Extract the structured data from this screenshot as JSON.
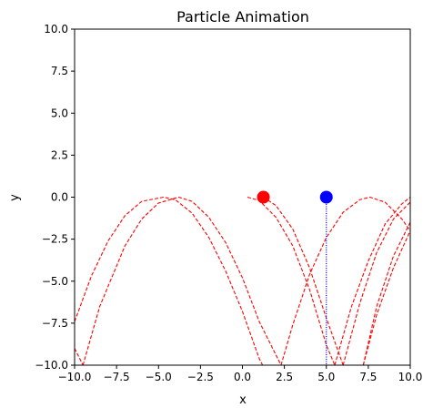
{
  "chart_data": {
    "type": "line",
    "title": "Particle Animation",
    "xlabel": "x",
    "ylabel": "y",
    "xlim": [
      -10,
      10
    ],
    "ylim": [
      -10,
      10
    ],
    "grid": false,
    "x_ticks": [
      {
        "value": -10,
        "label": "−10.0"
      },
      {
        "value": -7.5,
        "label": "−7.5"
      },
      {
        "value": -5,
        "label": "−5.0"
      },
      {
        "value": -2.5,
        "label": "−2.5"
      },
      {
        "value": 0,
        "label": "0.0"
      },
      {
        "value": 2.5,
        "label": "2.5"
      },
      {
        "value": 5,
        "label": "5.0"
      },
      {
        "value": 7.5,
        "label": "7.5"
      },
      {
        "value": 10,
        "label": "10.0"
      }
    ],
    "y_ticks": [
      {
        "value": -10,
        "label": "−10.0"
      },
      {
        "value": -7.5,
        "label": "−7.5"
      },
      {
        "value": -5,
        "label": "−5.0"
      },
      {
        "value": -2.5,
        "label": "−2.5"
      },
      {
        "value": 0,
        "label": "0.0"
      },
      {
        "value": 2.5,
        "label": "2.5"
      },
      {
        "value": 5,
        "label": "5.0"
      },
      {
        "value": 7.5,
        "label": "7.5"
      },
      {
        "value": 10,
        "label": "10.0"
      }
    ],
    "series": [
      {
        "style": "dashed",
        "color": "#ff0000",
        "points": [
          [
            0.3,
            0.0
          ],
          [
            1.0,
            -0.2
          ],
          [
            2.0,
            -1.2
          ],
          [
            3.0,
            -2.9
          ],
          [
            4.0,
            -5.5
          ],
          [
            5.0,
            -8.8
          ],
          [
            5.5,
            -10.0
          ]
        ]
      },
      {
        "style": "dashed",
        "color": "#ff0000",
        "points": [
          [
            1.25,
            0.0
          ],
          [
            2.0,
            -0.5
          ],
          [
            3.0,
            -1.9
          ],
          [
            4.0,
            -4.2
          ],
          [
            5.0,
            -7.2
          ],
          [
            6.0,
            -10.0
          ]
        ]
      },
      {
        "style": "dashed",
        "color": "#ff0000",
        "points": [
          [
            -10.0,
            -7.4
          ],
          [
            -9.0,
            -4.7
          ],
          [
            -8.0,
            -2.6
          ],
          [
            -7.0,
            -1.1
          ],
          [
            -6.0,
            -0.25
          ],
          [
            -4.7,
            0.0
          ],
          [
            -4.0,
            -0.15
          ],
          [
            -3.0,
            -0.95
          ],
          [
            -2.0,
            -2.4
          ],
          [
            -1.0,
            -4.4
          ],
          [
            0.0,
            -6.8
          ],
          [
            1.0,
            -9.6
          ],
          [
            1.2,
            -10.0
          ]
        ]
      },
      {
        "style": "dashed",
        "color": "#ff0000",
        "points": [
          [
            -10.0,
            -9.0
          ],
          [
            -9.5,
            -10.0
          ]
        ]
      },
      {
        "style": "dashed",
        "color": "#ff0000",
        "points": [
          [
            -9.5,
            -10.0
          ],
          [
            -8.5,
            -6.5
          ],
          [
            -7.0,
            -2.9
          ],
          [
            -6.0,
            -1.3
          ],
          [
            -5.0,
            -0.35
          ],
          [
            -3.8,
            0.0
          ],
          [
            -3.0,
            -0.25
          ],
          [
            -2.0,
            -1.2
          ],
          [
            -1.0,
            -2.7
          ],
          [
            0.0,
            -4.8
          ],
          [
            1.0,
            -7.4
          ],
          [
            2.3,
            -10.0
          ]
        ]
      },
      {
        "style": "dashed",
        "color": "#ff0000",
        "points": [
          [
            2.3,
            -10.0
          ],
          [
            3.0,
            -7.6
          ],
          [
            4.0,
            -4.6
          ],
          [
            5.0,
            -2.4
          ],
          [
            6.0,
            -0.9
          ],
          [
            7.0,
            -0.15
          ],
          [
            7.6,
            0.0
          ],
          [
            8.5,
            -0.3
          ],
          [
            9.5,
            -1.3
          ],
          [
            10.0,
            -2.0
          ]
        ]
      },
      {
        "style": "dashed",
        "color": "#ff0000",
        "points": [
          [
            5.5,
            -10.0
          ],
          [
            6.5,
            -6.5
          ],
          [
            7.5,
            -3.8
          ],
          [
            8.5,
            -1.6
          ],
          [
            9.5,
            -0.4
          ],
          [
            10.0,
            0.0
          ]
        ]
      },
      {
        "style": "dashed",
        "color": "#ff0000",
        "points": [
          [
            6.0,
            -10.0
          ],
          [
            7.0,
            -6.3
          ],
          [
            8.0,
            -3.3
          ],
          [
            9.0,
            -1.3
          ],
          [
            10.0,
            -0.3
          ]
        ]
      },
      {
        "style": "dashed",
        "color": "#ff0000",
        "points": [
          [
            7.2,
            -10.0
          ],
          [
            8.0,
            -7.0
          ],
          [
            9.0,
            -4.2
          ],
          [
            10.0,
            -2.0
          ]
        ]
      },
      {
        "style": "dashed",
        "color": "#ff0000",
        "points": [
          [
            7.2,
            -10.0
          ],
          [
            8.0,
            -6.5
          ],
          [
            9.0,
            -3.5
          ],
          [
            10.0,
            -1.5
          ]
        ]
      },
      {
        "style": "dotted",
        "color": "#0000ff",
        "points": [
          [
            5.0,
            0.0
          ],
          [
            5.0,
            -10.0
          ]
        ]
      }
    ],
    "markers": [
      {
        "x": 1.25,
        "y": 0.0,
        "color": "#ff0000"
      },
      {
        "x": 5.0,
        "y": 0.0,
        "color": "#0000ff"
      }
    ]
  }
}
